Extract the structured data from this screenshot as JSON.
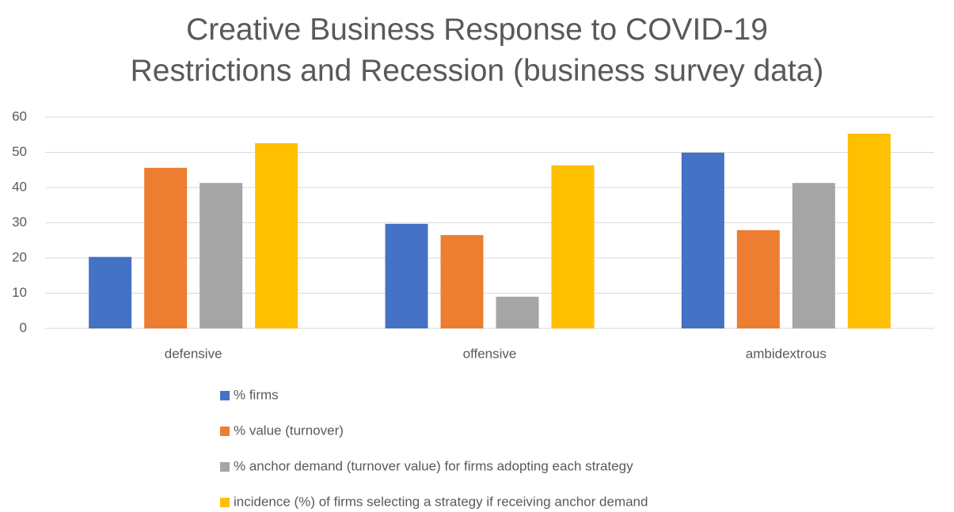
{
  "chart_data": {
    "type": "bar",
    "title": "Creative Business Response to COVID-19 Restrictions and Recession (business survey data)",
    "categories": [
      "defensive",
      "offensive",
      "ambidextrous"
    ],
    "series": [
      {
        "name": "% firms",
        "color": "#4472c4",
        "values": [
          20.3,
          29.7,
          49.9
        ]
      },
      {
        "name": "% value (turnover)",
        "color": "#ed7d31",
        "values": [
          45.6,
          26.5,
          27.9
        ]
      },
      {
        "name": "% anchor demand (turnover value) for firms adopting each strategy",
        "color": "#a5a5a5",
        "values": [
          41.3,
          9.0,
          41.3
        ]
      },
      {
        "name": "incidence (%) of firms selecting a strategy if receiving anchor demand",
        "color": "#ffc000",
        "values": [
          52.6,
          46.3,
          55.3
        ]
      }
    ],
    "ylim": [
      0,
      60
    ],
    "yticks": [
      0,
      10,
      20,
      30,
      40,
      50,
      60
    ],
    "grid": true,
    "legend": "bottom"
  }
}
